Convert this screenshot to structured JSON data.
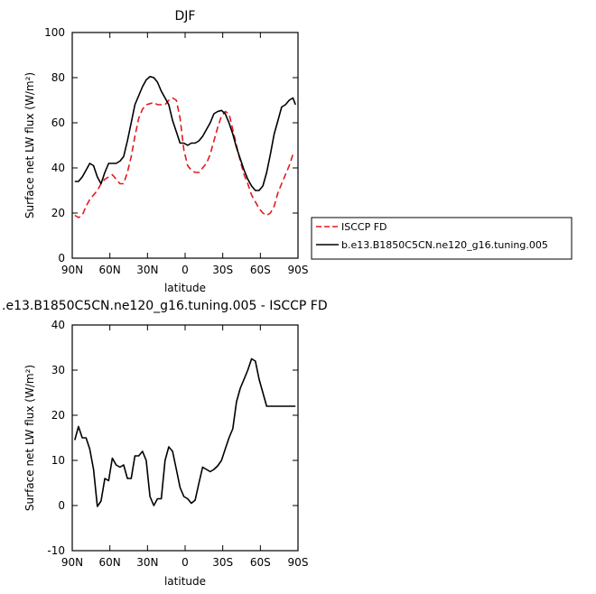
{
  "chart_data": [
    {
      "type": "line",
      "title": "DJF",
      "xlabel": "latitude",
      "ylabel": "Surface net LW flux (W/m²)",
      "x_ticks": [
        "90N",
        "60N",
        "30N",
        "0",
        "30S",
        "60S",
        "90S"
      ],
      "x_tick_values": [
        90,
        60,
        30,
        0,
        -30,
        -60,
        -90
      ],
      "xlim": [
        90,
        -90
      ],
      "ylim": [
        0,
        100
      ],
      "y_ticks": [
        0,
        20,
        40,
        60,
        80,
        100
      ],
      "legend_position": "right",
      "series": [
        {
          "name": "ISCCP FD",
          "color": "#e41a1c",
          "style": "dashed",
          "x": [
            88,
            85,
            82,
            79,
            76,
            73,
            70,
            67,
            64,
            61,
            58,
            55,
            52,
            49,
            46,
            43,
            40,
            37,
            34,
            31,
            28,
            25,
            22,
            19,
            16,
            13,
            10,
            7,
            4,
            1,
            -2,
            -5,
            -8,
            -11,
            -14,
            -17,
            -20,
            -23,
            -26,
            -29,
            -32,
            -35,
            -38,
            -41,
            -44,
            -47,
            -50,
            -53,
            -56,
            -59,
            -62,
            -65,
            -68,
            -71,
            -74,
            -77,
            -80,
            -83,
            -86,
            -88
          ],
          "y": [
            19,
            18,
            19,
            23,
            26,
            28,
            30,
            33,
            35,
            36,
            37,
            35,
            33,
            33,
            38,
            45,
            54,
            62,
            66,
            68,
            68.5,
            69,
            68,
            68,
            68,
            70,
            71,
            70,
            62,
            48,
            41,
            39,
            38,
            38,
            40,
            42,
            46,
            52,
            58,
            63,
            65,
            64,
            57,
            50,
            43,
            37,
            33,
            28,
            25,
            22,
            20,
            19,
            20,
            23,
            29,
            33,
            37,
            41,
            46,
            46
          ]
        },
        {
          "name": "b.e13.B1850C5CN.ne120_g16.tuning.005",
          "color": "#000000",
          "style": "solid",
          "x": [
            88,
            85,
            82,
            79,
            76,
            73,
            70,
            67,
            64,
            61,
            58,
            55,
            52,
            49,
            46,
            43,
            40,
            37,
            34,
            31,
            28,
            25,
            22,
            19,
            16,
            13,
            10,
            7,
            4,
            1,
            -2,
            -5,
            -8,
            -11,
            -14,
            -17,
            -20,
            -23,
            -26,
            -29,
            -32,
            -35,
            -38,
            -41,
            -44,
            -47,
            -50,
            -53,
            -56,
            -59,
            -62,
            -65,
            -68,
            -71,
            -74,
            -77,
            -80,
            -83,
            -86,
            -88
          ],
          "y": [
            34,
            34,
            36,
            39,
            42,
            41,
            36,
            33,
            38,
            42,
            42,
            42,
            43,
            45,
            52,
            60,
            68,
            72,
            76,
            79,
            80.5,
            80,
            78,
            74,
            71,
            68,
            61,
            56,
            51,
            51,
            50,
            51,
            51,
            52,
            54,
            57,
            60,
            64,
            65,
            65.5,
            64,
            60,
            55,
            49,
            44,
            39,
            35,
            32,
            30,
            30,
            32,
            38,
            46,
            55,
            61,
            67,
            68,
            70,
            71,
            68
          ]
        }
      ]
    },
    {
      "type": "line",
      "title": ".e13.B1850C5CN.ne120_g16.tuning.005 - ISCCP FD",
      "xlabel": "latitude",
      "ylabel": "Surface net LW flux (W/m²)",
      "x_ticks": [
        "90N",
        "60N",
        "30N",
        "0",
        "30S",
        "60S",
        "90S"
      ],
      "x_tick_values": [
        90,
        60,
        30,
        0,
        -30,
        -60,
        -90
      ],
      "xlim": [
        90,
        -90
      ],
      "ylim": [
        -10,
        40
      ],
      "y_ticks": [
        -10,
        0,
        10,
        20,
        30,
        40
      ],
      "series": [
        {
          "color": "#000000",
          "style": "solid",
          "x": [
            88,
            85,
            82,
            79,
            76,
            73,
            70,
            67,
            64,
            61,
            58,
            55,
            52,
            49,
            46,
            43,
            40,
            37,
            34,
            31,
            28,
            25,
            22,
            19,
            16,
            13,
            10,
            7,
            4,
            1,
            -2,
            -5,
            -8,
            -11,
            -14,
            -17,
            -20,
            -23,
            -26,
            -29,
            -32,
            -35,
            -38,
            -41,
            -44,
            -47,
            -50,
            -53,
            -56,
            -59,
            -62,
            -65,
            -68,
            -71,
            -74,
            -77,
            -80,
            -83,
            -86,
            -88
          ],
          "y": [
            14.5,
            17.5,
            15,
            15,
            12.5,
            8,
            -0.2,
            1,
            6,
            5.5,
            10.5,
            9,
            8.5,
            9,
            6,
            6,
            11,
            11,
            12,
            10,
            2,
            0,
            1.5,
            1.5,
            10,
            13,
            12,
            8,
            4,
            2,
            1.5,
            0.5,
            1.2,
            5,
            8.5,
            8,
            7.5,
            8,
            8.8,
            10,
            12.5,
            15,
            17,
            23,
            26,
            28,
            30,
            32.5,
            32,
            28,
            25,
            22,
            22,
            22,
            22,
            22,
            22,
            22,
            22,
            22
          ]
        }
      ]
    }
  ]
}
